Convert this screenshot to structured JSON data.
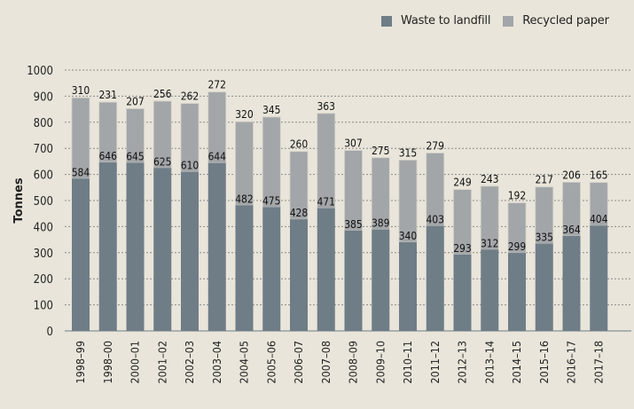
{
  "chart_data": {
    "type": "bar",
    "stacked": true,
    "title": "",
    "xlabel": "",
    "ylabel": "Tonnes",
    "ylim": [
      0,
      1000
    ],
    "yticks": [
      0,
      100,
      200,
      300,
      400,
      500,
      600,
      700,
      800,
      900,
      1000
    ],
    "grid": true,
    "legend_position": "top-right",
    "categories": [
      "1998–99",
      "1998–00",
      "2000–01",
      "2001–02",
      "2002–03",
      "2003–04",
      "2004–05",
      "2005–06",
      "2006–07",
      "2007–08",
      "2008–09",
      "2009–10",
      "2010–11",
      "2011–12",
      "2012–13",
      "2013–14",
      "2014–15",
      "2015–16",
      "2016–17",
      "2017–18"
    ],
    "series": [
      {
        "name": "Waste to landfill",
        "color": "#6f7d87",
        "values": [
          584,
          646,
          645,
          625,
          610,
          644,
          482,
          475,
          428,
          471,
          385,
          389,
          340,
          403,
          293,
          312,
          299,
          335,
          364,
          404
        ]
      },
      {
        "name": "Recycled paper",
        "color": "#a3a6a8",
        "values": [
          310,
          231,
          207,
          256,
          262,
          272,
          320,
          345,
          260,
          363,
          307,
          275,
          315,
          279,
          249,
          243,
          192,
          217,
          206,
          165
        ]
      }
    ]
  }
}
